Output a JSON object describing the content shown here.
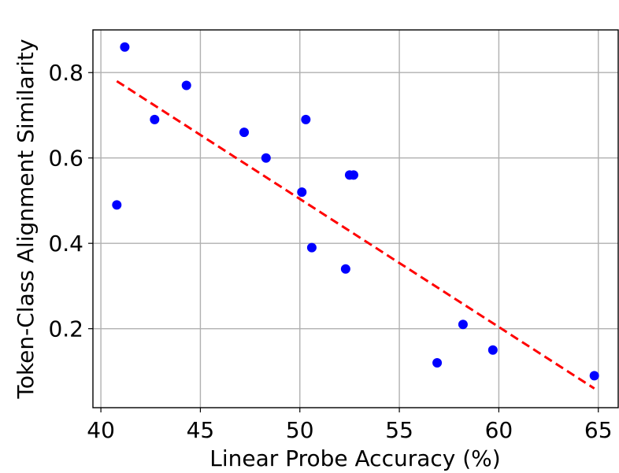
{
  "chart_data": {
    "type": "scatter",
    "xlabel": "Linear Probe Accuracy (%)",
    "ylabel": "Token-Class Alignment Similarity",
    "xlim": [
      39.6,
      66.0
    ],
    "ylim": [
      0.015,
      0.9
    ],
    "xticks": [
      40,
      45,
      50,
      55,
      60,
      65
    ],
    "yticks": [
      0.2,
      0.4,
      0.6,
      0.8
    ],
    "xtick_labels": [
      "40",
      "45",
      "50",
      "55",
      "60",
      "65"
    ],
    "ytick_labels": [
      "0.2",
      "0.4",
      "0.6",
      "0.8"
    ],
    "grid": true,
    "series": [
      {
        "kind": "points",
        "color": "#0000ff",
        "points": [
          {
            "x": 40.8,
            "y": 0.49
          },
          {
            "x": 41.2,
            "y": 0.86
          },
          {
            "x": 42.7,
            "y": 0.69
          },
          {
            "x": 44.3,
            "y": 0.77
          },
          {
            "x": 47.2,
            "y": 0.66
          },
          {
            "x": 48.3,
            "y": 0.6
          },
          {
            "x": 50.1,
            "y": 0.52
          },
          {
            "x": 50.3,
            "y": 0.69
          },
          {
            "x": 50.6,
            "y": 0.39
          },
          {
            "x": 52.3,
            "y": 0.34
          },
          {
            "x": 52.5,
            "y": 0.56
          },
          {
            "x": 52.7,
            "y": 0.56
          },
          {
            "x": 56.9,
            "y": 0.12
          },
          {
            "x": 58.2,
            "y": 0.21
          },
          {
            "x": 59.7,
            "y": 0.15
          },
          {
            "x": 64.8,
            "y": 0.09
          }
        ]
      },
      {
        "kind": "trend",
        "color": "#ff0000",
        "style": "dashed",
        "from": {
          "x": 40.8,
          "y": 0.78
        },
        "to": {
          "x": 64.8,
          "y": 0.06
        }
      }
    ]
  }
}
